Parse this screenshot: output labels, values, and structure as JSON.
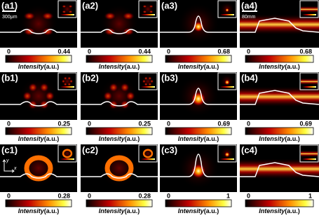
{
  "panels": [
    {
      "label": "(a1)",
      "colorbar_min": 0,
      "colorbar_max": 0.44,
      "intensity_label": "Intensity",
      "unit_label": "(a.u.)"
    },
    {
      "label": "(a2)",
      "colorbar_min": 0,
      "colorbar_max": 0.44,
      "intensity_label": "Intensity",
      "unit_label": "(a.u.)"
    },
    {
      "label": "(a3)",
      "colorbar_min": 0,
      "colorbar_max": 0.68,
      "intensity_label": "Intensity",
      "unit_label": "(a.u.)"
    },
    {
      "label": "(a4)",
      "colorbar_min": 0,
      "colorbar_max": 0.68,
      "intensity_label": "Intensity",
      "unit_label": "(a.u.)"
    },
    {
      "label": "(b1)",
      "colorbar_min": 0,
      "colorbar_max": 0.25,
      "intensity_label": "Intensity",
      "unit_label": "(a.u.)"
    },
    {
      "label": "(b2)",
      "colorbar_min": 0,
      "colorbar_max": 0.25,
      "intensity_label": "Intensity",
      "unit_label": "(a.u.)"
    },
    {
      "label": "(b3)",
      "colorbar_min": 0,
      "colorbar_max": 0.69,
      "intensity_label": "Intensity",
      "unit_label": "(a.u.)"
    },
    {
      "label": "(b4)",
      "colorbar_min": 0,
      "colorbar_max": 0.69,
      "intensity_label": "Intensity",
      "unit_label": "(a.u.)"
    },
    {
      "label": "(c1)",
      "colorbar_min": 0,
      "colorbar_max": 0.28,
      "intensity_label": "Intensity",
      "unit_label": "(a.u.)"
    },
    {
      "label": "(c2)",
      "colorbar_min": 0,
      "colorbar_max": 0.28,
      "intensity_label": "Intensity",
      "unit_label": "(a.u.)"
    },
    {
      "label": "(c3)",
      "colorbar_min": 0,
      "colorbar_max": 1,
      "intensity_label": "Intensity",
      "unit_label": "(a.u.)"
    },
    {
      "label": "(c4)",
      "colorbar_min": 0,
      "colorbar_max": 1,
      "intensity_label": "Intensity",
      "unit_label": "(a.u.)"
    }
  ],
  "scale_bar_a1": "300μm",
  "scale_bar_a4": "80mm",
  "axis_x": "x",
  "axis_y": "y"
}
